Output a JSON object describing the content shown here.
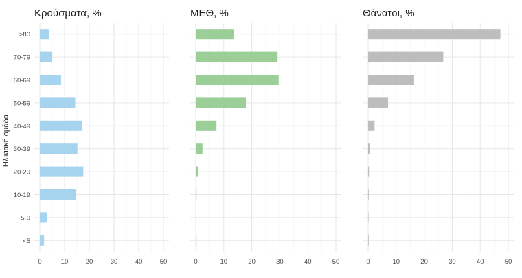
{
  "chart_data": {
    "type": "bar",
    "orientation": "horizontal",
    "ylabel": "Ηλικιακή ομάδα",
    "categories": [
      ">80",
      "70-79",
      "60-69",
      "50-59",
      "40-49",
      "30-39",
      "20-29",
      "10-19",
      "5-9",
      "<5"
    ],
    "xlim": [
      0,
      50
    ],
    "xticks": [
      0,
      10,
      20,
      30,
      40,
      50
    ],
    "grid": true,
    "panels": [
      {
        "title": "Κρούσματα, %",
        "color": "#a6d4ee",
        "values": [
          3.7,
          5.0,
          8.6,
          14.3,
          17.0,
          15.2,
          17.6,
          14.6,
          3.0,
          1.7
        ]
      },
      {
        "title": "ΜΕΘ, %",
        "color": "#9ccf98",
        "values": [
          13.5,
          29.2,
          29.6,
          17.9,
          7.4,
          2.4,
          0.8,
          0.3,
          0.2,
          0.3
        ]
      },
      {
        "title": "Θάνατοι, %",
        "color": "#bdbdbd",
        "values": [
          47.2,
          26.8,
          16.4,
          7.1,
          2.3,
          0.7,
          0.3,
          0.2,
          0.1,
          0.2
        ]
      }
    ]
  }
}
